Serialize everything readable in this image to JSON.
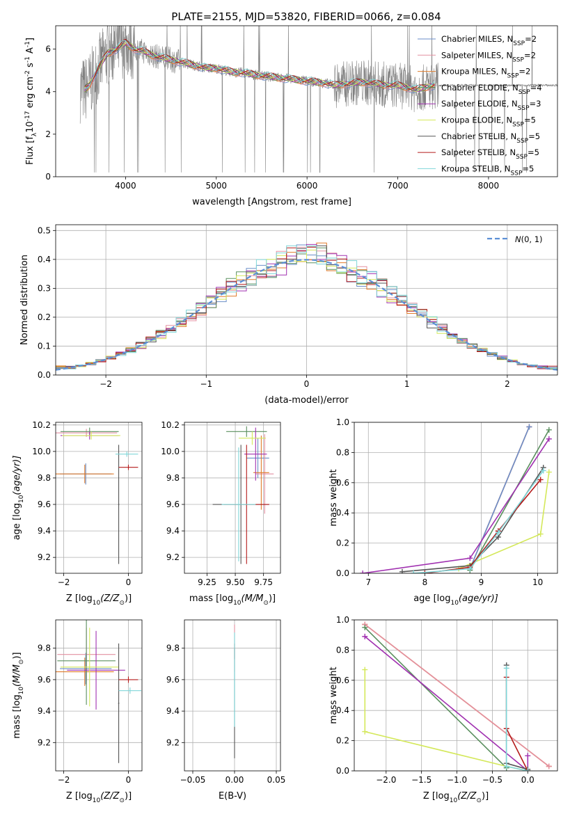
{
  "title": "PLATE=2155, MJD=53820, FIBERID=0066, z=0.084",
  "colors": {
    "chabrier_miles": "#6a8ec8",
    "salpeter_miles": "#e38fa0",
    "kroupa_miles": "#e07b2a",
    "chabrier_elodie": "#5a8f5e",
    "salpeter_elodie": "#a030b0",
    "kroupa_elodie": "#d4e85a",
    "chabrier_stelib": "#555555",
    "salpeter_stelib": "#b41a1a",
    "kroupa_stelib": "#7fd6d8",
    "data": "#808080",
    "normal": "#5b8fd6"
  },
  "chart_data": [
    {
      "id": "spectrum",
      "type": "line",
      "xlabel": "wavelength [Angstrom, rest frame]",
      "ylabel_prefix": "Flux [f",
      "ylabel_mid": "10",
      "ylabel_exp1": "-17",
      "ylabel_mid2": " erg cm",
      "ylabel_exp2": "-2",
      "ylabel_mid3": " s",
      "ylabel_exp3": "-1",
      "ylabel_mid4": " A",
      "ylabel_exp4": "-1",
      "ylabel_end": "]",
      "xlim": [
        3230,
        8760
      ],
      "ylim": [
        0,
        7.1
      ],
      "xticks": [
        4000,
        5000,
        6000,
        7000,
        8000
      ],
      "yticks": [
        0,
        2,
        4,
        6
      ],
      "continuum_x": [
        3550,
        3600,
        3700,
        3800,
        3900,
        4000,
        4100,
        4200,
        4300,
        4400,
        4500,
        4600,
        4700,
        4800,
        4900,
        5000,
        5100,
        5200,
        5300,
        5400,
        5500,
        5600,
        5700,
        5800,
        5900,
        6000,
        6100,
        6200,
        6300,
        6400,
        6500,
        6600,
        6700,
        6800,
        6900,
        7000,
        7100,
        7200,
        7300,
        7410
      ],
      "continuum_y": [
        4.1,
        4.3,
        5.1,
        5.8,
        6.0,
        6.3,
        6.0,
        5.9,
        5.7,
        5.6,
        5.5,
        5.4,
        5.3,
        5.2,
        5.1,
        5.1,
        5.0,
        4.9,
        4.9,
        4.8,
        4.75,
        4.7,
        4.65,
        4.6,
        4.55,
        4.5,
        4.45,
        4.4,
        4.3,
        4.35,
        4.4,
        4.45,
        4.4,
        4.35,
        4.3,
        4.3,
        4.2,
        4.1,
        4.2,
        4.3
      ],
      "legend": [
        {
          "name": "Chabrier MILES",
          "nssp": "2",
          "color_key": "chabrier_miles"
        },
        {
          "name": "Salpeter MILES",
          "nssp": "2",
          "color_key": "salpeter_miles"
        },
        {
          "name": "Kroupa MILES",
          "nssp": "2",
          "color_key": "kroupa_miles"
        },
        {
          "name": "Chabrier ELODIE",
          "nssp": "4",
          "color_key": "chabrier_elodie"
        },
        {
          "name": "Salpeter ELODIE",
          "nssp": "3",
          "color_key": "salpeter_elodie"
        },
        {
          "name": "Kroupa ELODIE",
          "nssp": "5",
          "color_key": "kroupa_elodie"
        },
        {
          "name": "Chabrier STELIB",
          "nssp": "5",
          "color_key": "chabrier_stelib"
        },
        {
          "name": "Salpeter STELIB",
          "nssp": "5",
          "color_key": "salpeter_stelib"
        },
        {
          "name": "Kroupa STELIB",
          "nssp": "5",
          "color_key": "kroupa_stelib"
        }
      ],
      "nssp_label": "N",
      "nssp_sub": "SSP"
    },
    {
      "id": "residuals",
      "type": "histogram",
      "xlabel": "(data-model)/error",
      "ylabel": "Normed distribution",
      "xlim": [
        -2.5,
        2.5
      ],
      "ylim": [
        0,
        0.52
      ],
      "xticks": [
        -2,
        -1,
        0,
        1,
        2
      ],
      "yticks": [
        0.0,
        0.1,
        0.2,
        0.3,
        0.4,
        0.5
      ],
      "legend_label": "N(0,1)",
      "legend_label_n": "N",
      "legend_label_args": "(0, 1)",
      "bin_width": 0.1
    },
    {
      "id": "age_vs_Z",
      "type": "errorbar",
      "xlabel_prefix": "Z [log",
      "xlabel_sub": "10",
      "xlabel_args": "(Z/Z",
      "xlabel_sun": "⊙",
      "xlabel_end": ")]",
      "ylabel_prefix": "age  [log",
      "ylabel_sub": "10",
      "ylabel_args": "(age/yr)]",
      "xlim": [
        -2.25,
        0.42
      ],
      "ylim": [
        9.08,
        10.22
      ],
      "xticks": [
        -2,
        0
      ],
      "yticks": [
        9.2,
        9.4,
        9.6,
        9.8,
        10.0,
        10.2
      ],
      "points": [
        {
          "color_key": "chabrier_miles",
          "x": -1.32,
          "xerr": 0.8,
          "y": 9.83,
          "yerr": 0.08
        },
        {
          "color_key": "salpeter_miles",
          "x": -1.3,
          "xerr": 0.95,
          "y": 10.14,
          "yerr": 0.03
        },
        {
          "color_key": "kroupa_miles",
          "x": -1.35,
          "xerr": 0.9,
          "y": 9.83,
          "yerr": 0.07
        },
        {
          "color_key": "chabrier_elodie",
          "x": -1.2,
          "xerr": 0.9,
          "y": 10.15,
          "yerr": 0.03
        },
        {
          "color_key": "salpeter_elodie",
          "x": -1.2,
          "xerr": 0.9,
          "y": 10.12,
          "yerr": 0.03
        },
        {
          "color_key": "kroupa_elodie",
          "x": -1.15,
          "xerr": 0.9,
          "y": 10.12,
          "yerr": 0.03
        },
        {
          "color_key": "chabrier_stelib",
          "x": -0.3,
          "xerr": 0.02,
          "y": 9.6,
          "yerr": 0.45
        },
        {
          "color_key": "salpeter_stelib",
          "x": 0.0,
          "xerr": 0.3,
          "y": 9.88,
          "yerr": 0.02
        },
        {
          "color_key": "kroupa_stelib",
          "x": -0.05,
          "xerr": 0.35,
          "y": 9.98,
          "yerr": 0.02
        }
      ]
    },
    {
      "id": "age_vs_mass",
      "type": "errorbar",
      "xlabel_prefix": "mass [log",
      "xlabel_sub": "10",
      "xlabel_args": "(M/M",
      "xlabel_sun": "⊙",
      "xlabel_end": ")]",
      "xlim": [
        9.05,
        9.9
      ],
      "ylim": [
        9.08,
        10.22
      ],
      "xticks": [
        9.25,
        9.5,
        9.75
      ],
      "xtick_labels": [
        "9.25",
        "9.50",
        "9.75"
      ],
      "yticks": [
        9.2,
        9.4,
        9.6,
        9.8,
        10.0,
        10.2
      ],
      "points": [
        {
          "color_key": "chabrier_miles",
          "x": 9.7,
          "xerr": 0.1,
          "y": 9.95,
          "yerr": 0.15
        },
        {
          "color_key": "salpeter_miles",
          "x": 9.76,
          "xerr": 0.08,
          "y": 9.83,
          "yerr": 0.3
        },
        {
          "color_key": "kroupa_miles",
          "x": 9.73,
          "xerr": 0.07,
          "y": 9.84,
          "yerr": 0.28
        },
        {
          "color_key": "chabrier_elodie",
          "x": 9.6,
          "xerr": 0.18,
          "y": 10.15,
          "yerr": 0.04
        },
        {
          "color_key": "salpeter_elodie",
          "x": 9.68,
          "xerr": 0.1,
          "y": 9.98,
          "yerr": 0.2
        },
        {
          "color_key": "kroupa_elodie",
          "x": 9.65,
          "xerr": 0.12,
          "y": 10.1,
          "yerr": 0.05
        },
        {
          "color_key": "chabrier_stelib",
          "x": 9.55,
          "xerr": 0.25,
          "y": 9.6,
          "yerr": 0.45
        },
        {
          "color_key": "salpeter_stelib",
          "x": 9.6,
          "xerr": 0.2,
          "y": 9.6,
          "yerr": 0.45
        },
        {
          "color_key": "kroupa_stelib",
          "x": 9.53,
          "xerr": 0.15,
          "y": 9.6,
          "yerr": 0.43
        }
      ]
    },
    {
      "id": "weight_vs_age",
      "type": "line",
      "xlabel_prefix": "age  [log",
      "xlabel_sub": "10",
      "xlabel_args": "(age/yr)]",
      "ylabel": "mass weight",
      "xlim": [
        6.75,
        10.35
      ],
      "ylim": [
        0,
        1.0
      ],
      "xticks": [
        7,
        8,
        9,
        10
      ],
      "yticks": [
        0.0,
        0.2,
        0.4,
        0.6,
        0.8,
        1.0
      ],
      "series": [
        {
          "color_key": "kroupa_miles",
          "x": [
            8.8,
            9.85
          ],
          "y": [
            0.03,
            0.97
          ]
        },
        {
          "color_key": "salpeter_miles",
          "x": [
            8.8,
            9.85
          ],
          "y": [
            0.03,
            0.97
          ]
        },
        {
          "color_key": "chabrier_miles",
          "x": [
            8.8,
            9.85
          ],
          "y": [
            0.03,
            0.97
          ]
        },
        {
          "color_key": "chabrier_elodie",
          "x": [
            8.8,
            10.2
          ],
          "y": [
            0.02,
            0.95
          ]
        },
        {
          "color_key": "salpeter_elodie",
          "x": [
            6.9,
            8.8,
            10.2
          ],
          "y": [
            0.0,
            0.1,
            0.89
          ]
        },
        {
          "color_key": "kroupa_elodie",
          "x": [
            8.6,
            10.05,
            10.2
          ],
          "y": [
            0.03,
            0.26,
            0.67
          ]
        },
        {
          "color_key": "chabrier_stelib",
          "x": [
            7.6,
            8.8,
            9.3,
            10.1
          ],
          "y": [
            0.01,
            0.05,
            0.24,
            0.7
          ]
        },
        {
          "color_key": "salpeter_stelib",
          "x": [
            8.0,
            8.8,
            9.3,
            10.05
          ],
          "y": [
            0.0,
            0.04,
            0.28,
            0.62
          ]
        },
        {
          "color_key": "kroupa_stelib",
          "x": [
            7.8,
            8.8,
            9.3,
            10.1
          ],
          "y": [
            0.0,
            0.03,
            0.27,
            0.68
          ]
        }
      ]
    },
    {
      "id": "mass_vs_Z",
      "type": "errorbar",
      "xlabel_prefix": "Z [log",
      "xlabel_sub": "10",
      "xlabel_args": "(Z/Z",
      "xlabel_sun": "⊙",
      "xlabel_end": ")]",
      "ylabel_prefix": "mass [log",
      "ylabel_sub": "10",
      "ylabel_args": "(M/M",
      "ylabel_sun": "⊙",
      "ylabel_end": ")]",
      "xlim": [
        -2.25,
        0.42
      ],
      "ylim": [
        9.02,
        9.98
      ],
      "xticks": [
        -2,
        0
      ],
      "yticks": [
        9.2,
        9.4,
        9.6,
        9.8
      ],
      "points": [
        {
          "color_key": "chabrier_miles",
          "x": -1.32,
          "xerr": 0.8,
          "y": 9.67,
          "yerr": 0.1
        },
        {
          "color_key": "salpeter_miles",
          "x": -1.3,
          "xerr": 0.9,
          "y": 9.76,
          "yerr": 0.17
        },
        {
          "color_key": "kroupa_miles",
          "x": -1.35,
          "xerr": 0.9,
          "y": 9.65,
          "yerr": 0.09
        },
        {
          "color_key": "chabrier_elodie",
          "x": -1.3,
          "xerr": 0.9,
          "y": 9.72,
          "yerr": 0.28
        },
        {
          "color_key": "salpeter_elodie",
          "x": -1.0,
          "xerr": 0.9,
          "y": 9.66,
          "yerr": 0.25
        },
        {
          "color_key": "kroupa_elodie",
          "x": -1.2,
          "xerr": 0.9,
          "y": 9.68,
          "yerr": 0.25
        },
        {
          "color_key": "chabrier_stelib",
          "x": -0.3,
          "xerr": 0.02,
          "y": 9.45,
          "yerr": 0.38
        },
        {
          "color_key": "salpeter_stelib",
          "x": 0.0,
          "xerr": 0.3,
          "y": 9.6,
          "yerr": 0.02
        },
        {
          "color_key": "kroupa_stelib",
          "x": 0.05,
          "xerr": 0.35,
          "y": 9.53,
          "yerr": 0.02
        }
      ]
    },
    {
      "id": "mass_vs_ebv",
      "type": "errorbar",
      "xlabel": "E(B-V)",
      "xlim": [
        -0.06,
        0.055
      ],
      "ylim": [
        9.02,
        9.98
      ],
      "xticks": [
        -0.05,
        0.0,
        0.05
      ],
      "xtick_labels": [
        "−0.05",
        "0.00",
        "0.05"
      ],
      "yticks": [
        9.2,
        9.4,
        9.6,
        9.8
      ],
      "points": [
        {
          "color_key": "salpeter_miles",
          "x": 0.0,
          "xerr": 0.0,
          "y": 9.8,
          "yerr": 0.15
        },
        {
          "color_key": "chabrier_stelib",
          "x": 0.0,
          "xerr": 0.0,
          "y": 9.45,
          "yerr": 0.35
        },
        {
          "color_key": "salpeter_stelib",
          "x": 0.0,
          "xerr": 0.0,
          "y": 9.78,
          "yerr": 0.05
        },
        {
          "color_key": "kroupa_stelib",
          "x": 0.0,
          "xerr": 0.0,
          "y": 9.6,
          "yerr": 0.3
        }
      ]
    },
    {
      "id": "weight_vs_Z",
      "type": "line",
      "xlabel_prefix": "Z [log",
      "xlabel_sub": "10",
      "xlabel_args": "(Z/Z",
      "xlabel_sun": "⊙",
      "xlabel_end": ")]",
      "ylabel": "mass weight",
      "xlim": [
        -2.45,
        0.42
      ],
      "ylim": [
        0,
        1.0
      ],
      "xticks": [
        -2.0,
        -1.5,
        -1.0,
        -0.5,
        0.0
      ],
      "xtick_labels": [
        "−2.0",
        "−1.5",
        "−1.0",
        "−0.5",
        "0.0"
      ],
      "yticks": [
        0.0,
        0.2,
        0.4,
        0.6,
        0.8,
        1.0
      ],
      "series": [
        {
          "color_key": "kroupa_miles",
          "x": [
            -2.3,
            0.3
          ],
          "y": [
            0.97,
            0.03
          ]
        },
        {
          "color_key": "salpeter_miles",
          "x": [
            -2.3,
            0.3
          ],
          "y": [
            0.97,
            0.03
          ]
        },
        {
          "color_key": "chabrier_elodie",
          "x": [
            -2.3,
            -0.3
          ],
          "y": [
            0.95,
            0.02
          ]
        },
        {
          "color_key": "salpeter_elodie",
          "x": [
            -2.3,
            0.0,
            0.0
          ],
          "y": [
            0.89,
            0.0,
            0.1
          ]
        },
        {
          "color_key": "kroupa_elodie",
          "x": [
            -2.3,
            -2.3,
            -0.3,
            0.0
          ],
          "y": [
            0.67,
            0.26,
            0.03,
            0.0
          ]
        },
        {
          "color_key": "chabrier_stelib",
          "x": [
            -0.3,
            -0.3,
            0.0
          ],
          "y": [
            0.7,
            0.05,
            0.01
          ]
        },
        {
          "color_key": "salpeter_stelib",
          "x": [
            -0.3,
            -0.3,
            0.0
          ],
          "y": [
            0.62,
            0.28,
            0.0
          ]
        },
        {
          "color_key": "kroupa_stelib",
          "x": [
            -0.3,
            -0.3,
            0.0
          ],
          "y": [
            0.68,
            0.03,
            0.0
          ]
        }
      ]
    }
  ]
}
